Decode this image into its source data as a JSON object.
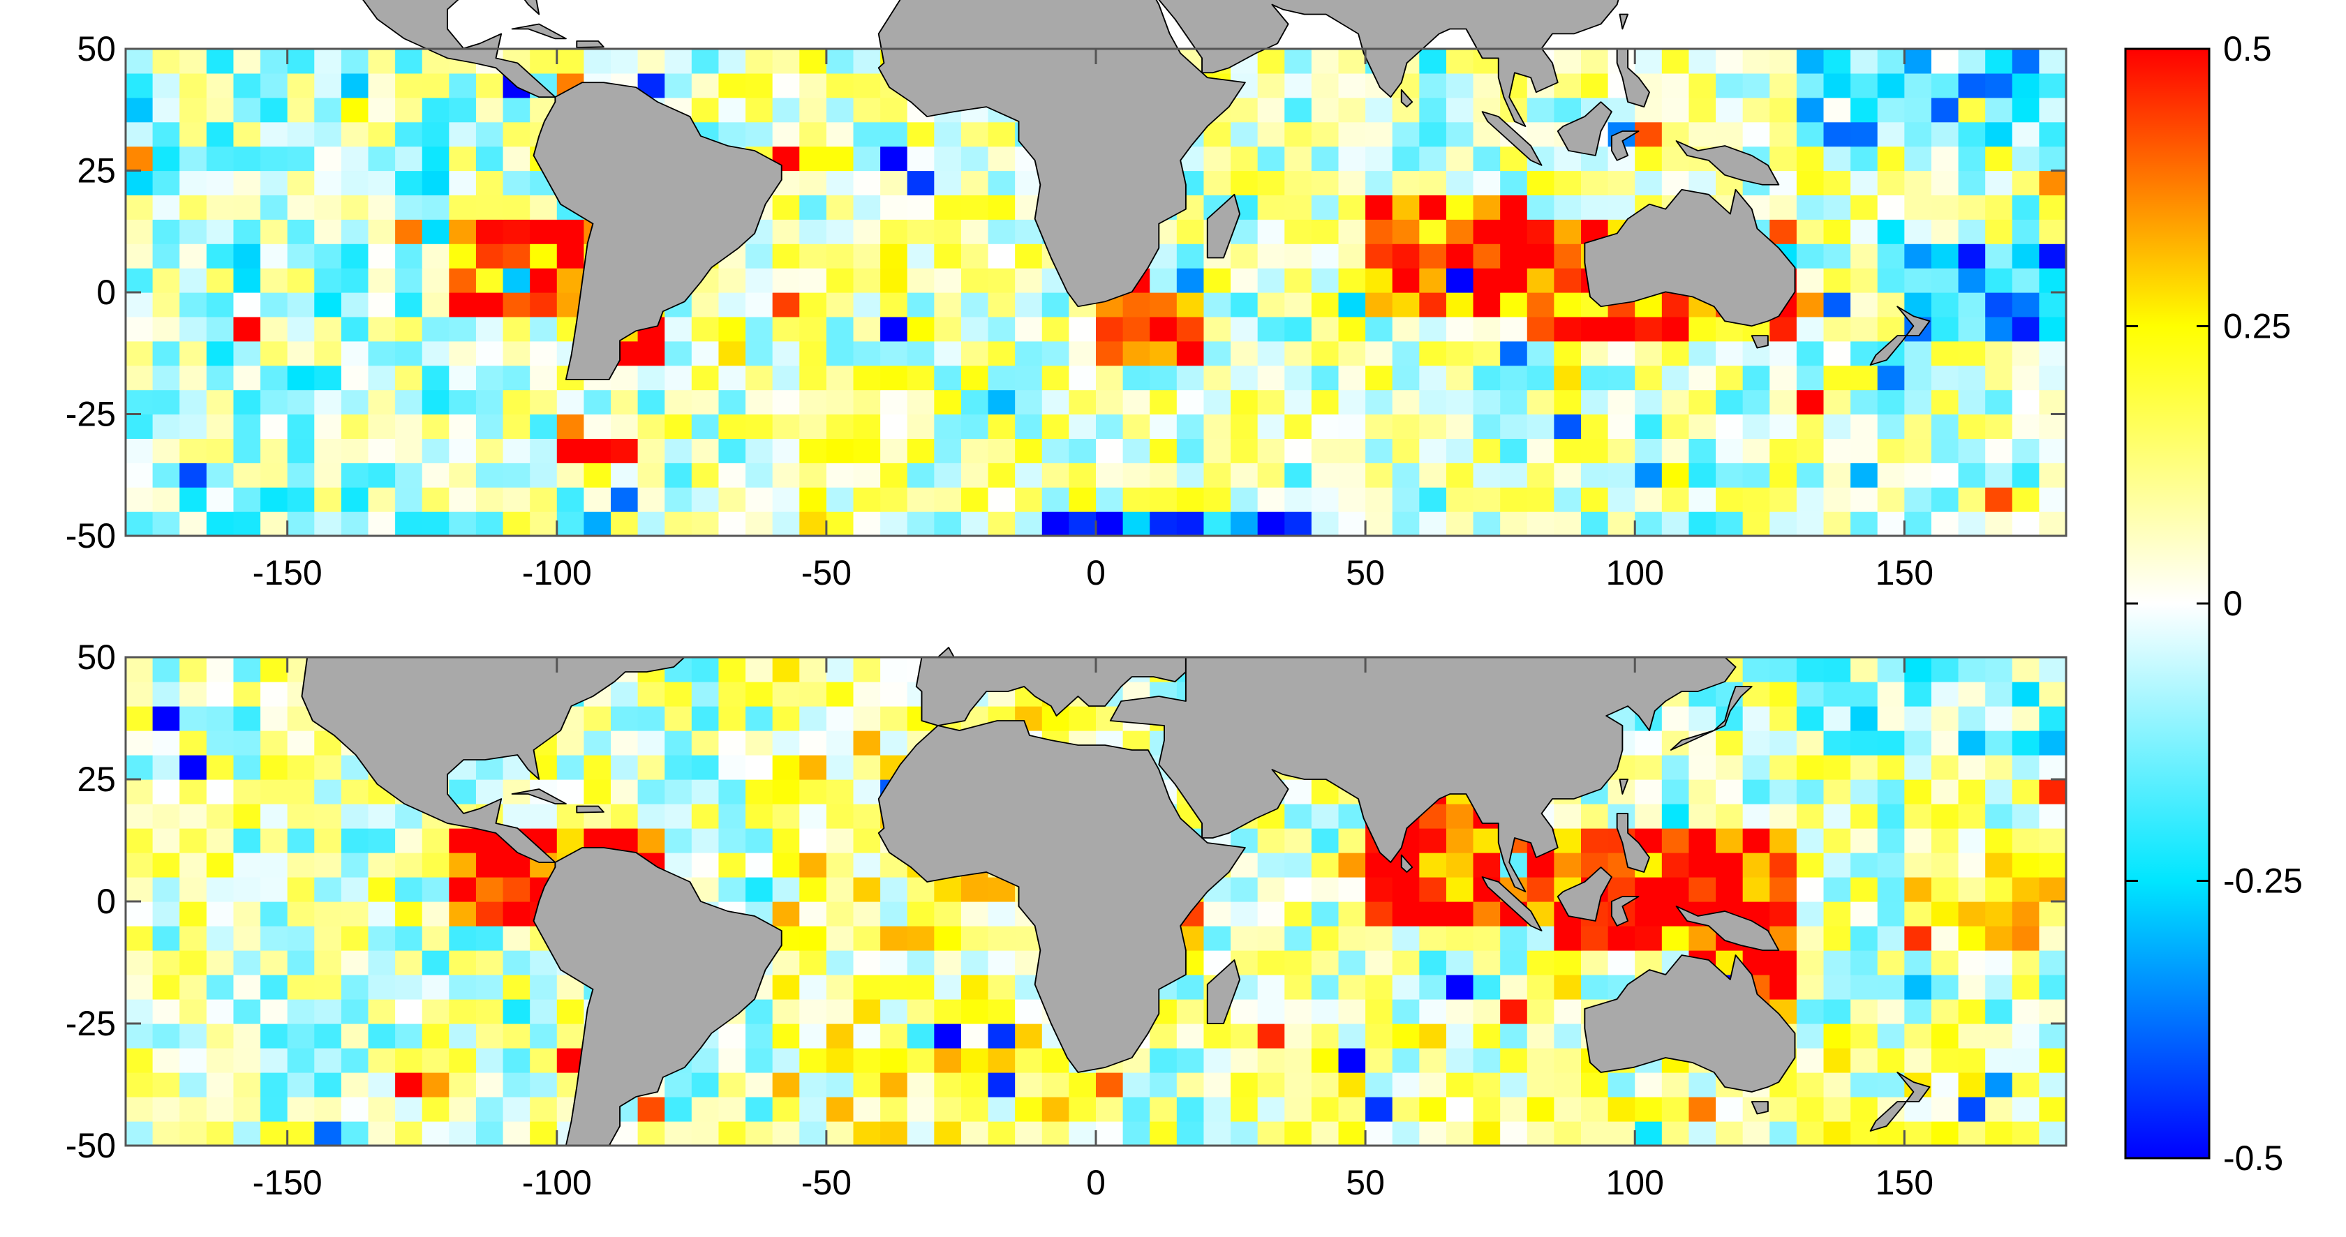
{
  "chart_data": [
    {
      "type": "heatmap",
      "panel": "top",
      "xlim": [
        -180,
        180
      ],
      "ylim": [
        -50,
        50
      ],
      "x_ticks": [
        -150,
        -100,
        -50,
        0,
        50,
        100,
        150
      ],
      "y_ticks": [
        50,
        25,
        0,
        -25,
        -50
      ],
      "x_tick_labels": [
        "-150",
        "-100",
        "-50",
        "0",
        "50",
        "100",
        "150"
      ],
      "y_tick_labels": [
        "50",
        "25",
        "0",
        "-25",
        "-50"
      ],
      "grid_cell_deg": 5,
      "regions": [
        {
          "lon": [
            -180,
            -120
          ],
          "lat": [
            -50,
            50
          ],
          "mean": -0.06
        },
        {
          "lon": [
            -120,
            -80
          ],
          "lat": [
            -5,
            15
          ],
          "mean": 0.42
        },
        {
          "lon": [
            -90,
            -80
          ],
          "lat": [
            -15,
            5
          ],
          "mean": 0.45
        },
        {
          "lon": [
            -100,
            -85
          ],
          "lat": [
            -37,
            -32
          ],
          "mean": 0.48
        },
        {
          "lon": [
            -60,
            0
          ],
          "lat": [
            -50,
            50
          ],
          "mean": 0.05
        },
        {
          "lon": [
            0,
            20
          ],
          "lat": [
            -15,
            5
          ],
          "mean": 0.4
        },
        {
          "lon": [
            -10,
            40
          ],
          "lat": [
            -50,
            -45
          ],
          "mean": -0.4
        },
        {
          "lon": [
            50,
            80
          ],
          "lat": [
            -5,
            20
          ],
          "mean": 0.42
        },
        {
          "lon": [
            80,
            130
          ],
          "lat": [
            -10,
            15
          ],
          "mean": 0.4
        },
        {
          "lon": [
            150,
            180
          ],
          "lat": [
            -10,
            10
          ],
          "mean": -0.3
        },
        {
          "lon": [
            130,
            180
          ],
          "lat": [
            30,
            50
          ],
          "mean": -0.2
        },
        {
          "lon": [
            40,
            180
          ],
          "lat": [
            -50,
            -25
          ],
          "mean": 0.0
        }
      ]
    },
    {
      "type": "heatmap",
      "panel": "bottom",
      "xlim": [
        -180,
        180
      ],
      "ylim": [
        -50,
        50
      ],
      "x_ticks": [
        -150,
        -100,
        -50,
        0,
        50,
        100,
        150
      ],
      "y_ticks": [
        50,
        25,
        0,
        -25,
        -50
      ],
      "x_tick_labels": [
        "-150",
        "-100",
        "-50",
        "0",
        "50",
        "100",
        "150"
      ],
      "y_tick_labels": [
        "50",
        "25",
        "0",
        "-25",
        "-50"
      ],
      "grid_cell_deg": 5,
      "regions": [
        {
          "lon": [
            -180,
            -120
          ],
          "lat": [
            -50,
            50
          ],
          "mean": 0.02
        },
        {
          "lon": [
            -120,
            -80
          ],
          "lat": [
            -5,
            15
          ],
          "mean": 0.44
        },
        {
          "lon": [
            -90,
            -80
          ],
          "lat": [
            -15,
            5
          ],
          "mean": 0.45
        },
        {
          "lon": [
            -100,
            -85
          ],
          "lat": [
            -37,
            -32
          ],
          "mean": 0.48
        },
        {
          "lon": [
            -60,
            0
          ],
          "lat": [
            -50,
            50
          ],
          "mean": 0.12
        },
        {
          "lon": [
            0,
            20
          ],
          "lat": [
            -15,
            5
          ],
          "mean": 0.35
        },
        {
          "lon": [
            50,
            80
          ],
          "lat": [
            -5,
            25
          ],
          "mean": 0.45
        },
        {
          "lon": [
            80,
            130
          ],
          "lat": [
            -10,
            15
          ],
          "mean": 0.45
        },
        {
          "lon": [
            110,
            130
          ],
          "lat": [
            -25,
            -10
          ],
          "mean": 0.42
        },
        {
          "lon": [
            150,
            180
          ],
          "lat": [
            -10,
            10
          ],
          "mean": 0.15
        },
        {
          "lon": [
            130,
            180
          ],
          "lat": [
            30,
            50
          ],
          "mean": -0.1
        },
        {
          "lon": [
            40,
            180
          ],
          "lat": [
            -50,
            -25
          ],
          "mean": 0.08
        }
      ]
    }
  ],
  "colorbar": {
    "min": -0.5,
    "max": 0.5,
    "ticks": [
      0.5,
      0.25,
      0,
      -0.25,
      -0.5
    ],
    "tick_labels": [
      "0.5",
      "0.25",
      "0",
      "-0.25",
      "-0.5"
    ],
    "stops": [
      "#0000ff",
      "#00e6ff",
      "#ffffff",
      "#ffff00",
      "#ff0000"
    ]
  },
  "colors": {
    "land": "#a9a9a9",
    "coast": "#000000"
  }
}
